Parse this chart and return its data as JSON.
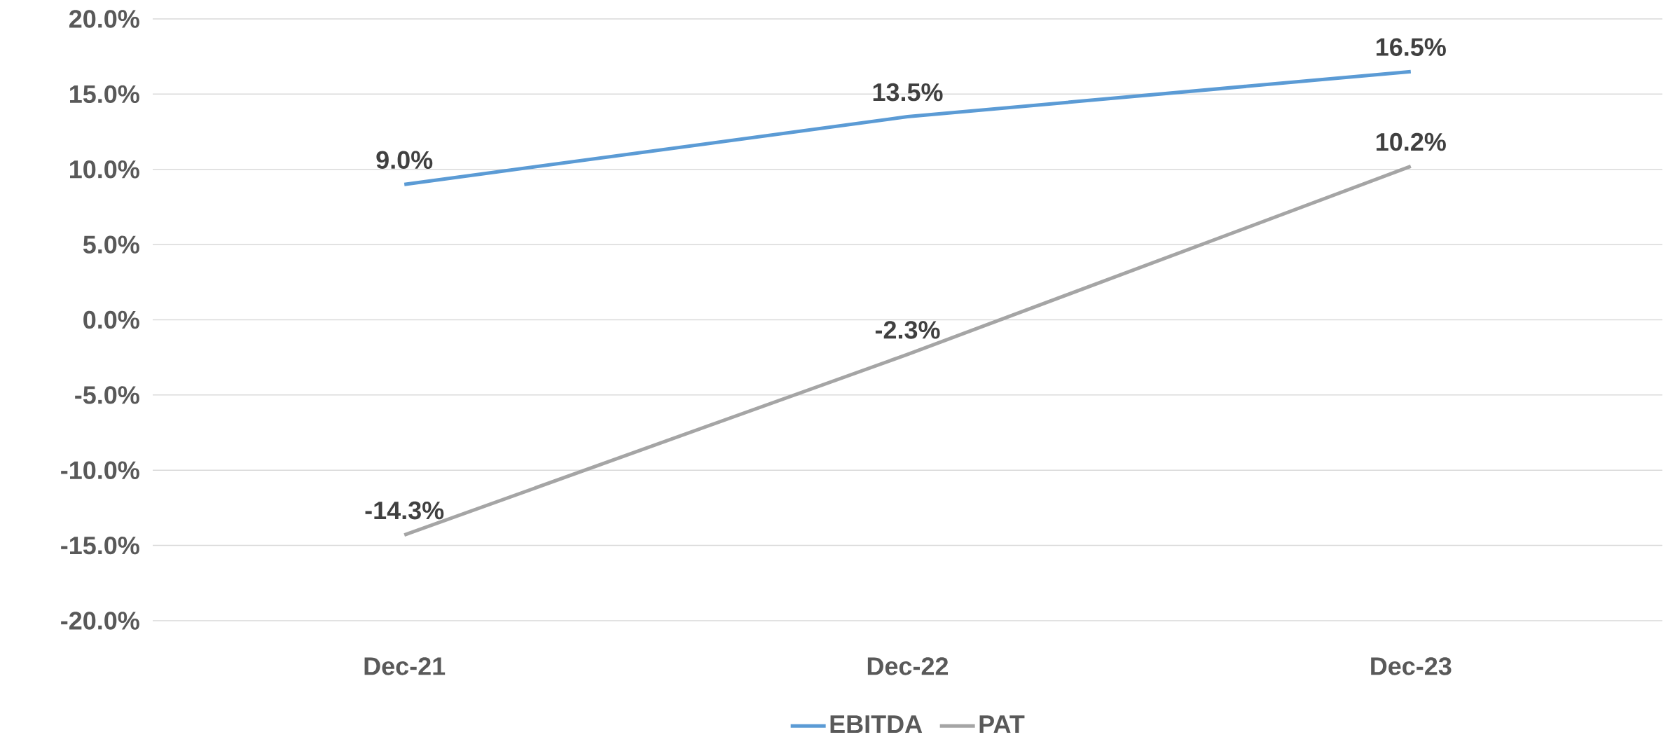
{
  "chart_data": {
    "type": "line",
    "categories": [
      "Dec-21",
      "Dec-22",
      "Dec-23"
    ],
    "series": [
      {
        "name": "EBITDA",
        "color": "#5b9bd5",
        "values": [
          9.0,
          13.5,
          16.5
        ],
        "value_labels": [
          "9.0%",
          "13.5%",
          "16.5%"
        ]
      },
      {
        "name": "PAT",
        "color": "#a5a5a5",
        "values": [
          -14.3,
          -2.3,
          10.2
        ],
        "value_labels": [
          "-14.3%",
          "-2.3%",
          "10.2%"
        ]
      }
    ],
    "ylim": [
      -20,
      20
    ],
    "yticks": [
      {
        "value": -20,
        "label": "-20.0%"
      },
      {
        "value": -15,
        "label": "-15.0%"
      },
      {
        "value": -10,
        "label": "-10.0%"
      },
      {
        "value": -5,
        "label": "-5.0%"
      },
      {
        "value": 0,
        "label": "0.0%"
      },
      {
        "value": 5,
        "label": "5.0%"
      },
      {
        "value": 10,
        "label": "10.0%"
      },
      {
        "value": 15,
        "label": "15.0%"
      },
      {
        "value": 20,
        "label": "20.0%"
      }
    ],
    "grid": "y",
    "legend": "bottom",
    "marker": "none",
    "line_style": "solid"
  }
}
